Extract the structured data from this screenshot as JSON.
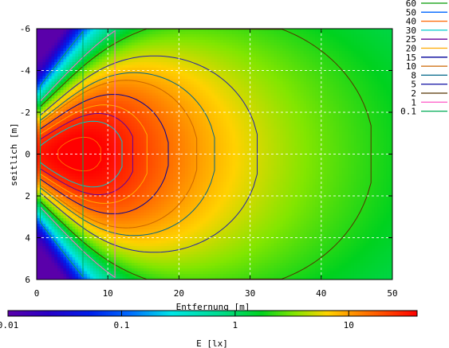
{
  "chart_data": {
    "type": "heatmap",
    "xlabel": "Entfernung [m]",
    "ylabel": "seitlich [m]",
    "xlim": [
      0,
      50
    ],
    "ylim": [
      -6,
      6
    ],
    "y_inverted": true,
    "x_ticks": [
      "0",
      "10",
      "20",
      "30",
      "40",
      "50"
    ],
    "y_ticks": [
      "-6",
      "-4",
      "-2",
      "0",
      "2",
      "4",
      "6"
    ],
    "grid": true,
    "legend": {
      "placement": "right",
      "entries": [
        {
          "label": "60",
          "color": "#009900"
        },
        {
          "label": "50",
          "color": "#0066ff"
        },
        {
          "label": "40",
          "color": "#ff6600"
        },
        {
          "label": "30",
          "color": "#00cccc"
        },
        {
          "label": "25",
          "color": "#660099"
        },
        {
          "label": "20",
          "color": "#ffaa00"
        },
        {
          "label": "15",
          "color": "#000099"
        },
        {
          "label": "10",
          "color": "#cc6600"
        },
        {
          "label": "8",
          "color": "#006688"
        },
        {
          "label": "5",
          "color": "#2222aa"
        },
        {
          "label": "2",
          "color": "#553300"
        },
        {
          "label": "1",
          "color": "#ff66cc"
        },
        {
          "label": "0.1",
          "color": "#00aa55"
        }
      ]
    },
    "colorbar": {
      "label": "E [lx]",
      "scale": "log",
      "range": [
        0.01,
        40
      ],
      "tick_labels": [
        "0.01",
        "0.1",
        "1",
        "10"
      ],
      "tick_values": [
        0.01,
        0.1,
        1,
        10
      ]
    },
    "contour_levels_lx": [
      60,
      50,
      40,
      30,
      25,
      20,
      15,
      10,
      8,
      5,
      2,
      1,
      0.1
    ]
  }
}
